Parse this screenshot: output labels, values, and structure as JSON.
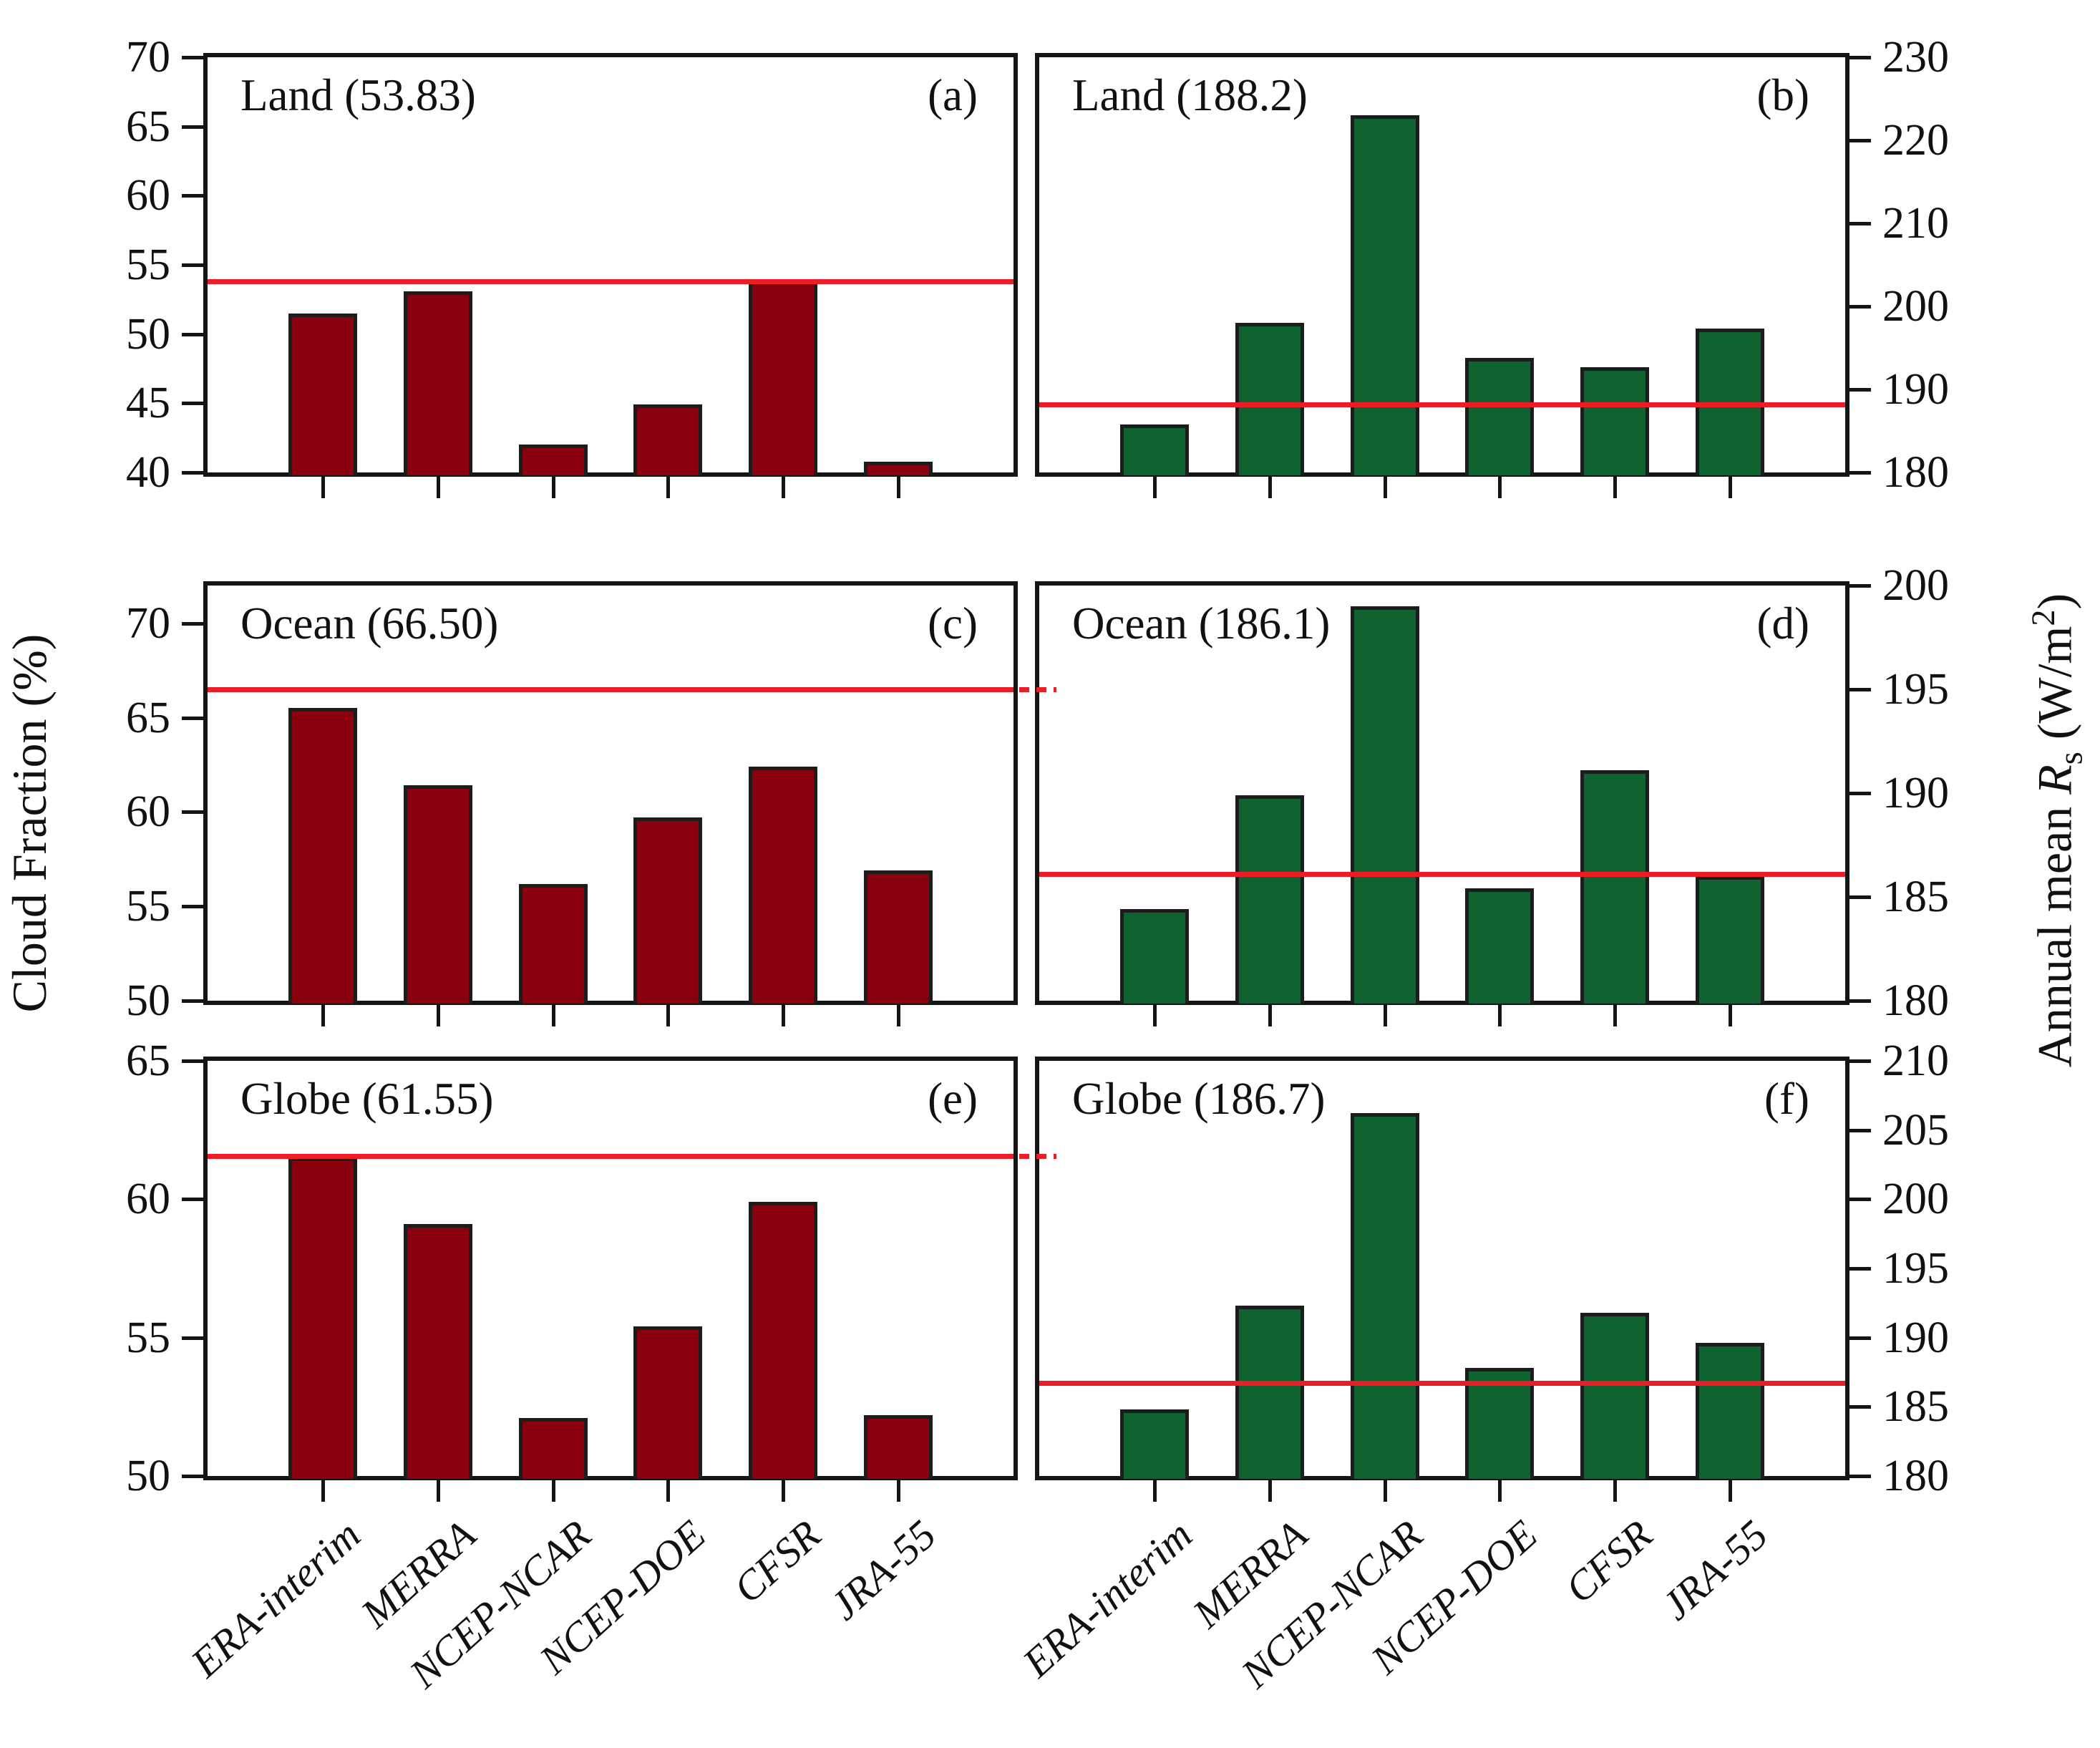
{
  "figure": {
    "left_axis_label": "Cloud Fraction (%)",
    "right_axis_label": {
      "prefix": "Annual mean ",
      "symbol": "R",
      "subscript": "s",
      "mid": " (W/m",
      "superscript": "2",
      "suffix": ")"
    },
    "colors": {
      "cloud_fraction_bar": "#8a010e",
      "radiation_bar": "#0e6330",
      "mean_line": "#ee1c25",
      "frame": "#151515"
    }
  },
  "chart_data": {
    "type": "bar",
    "categories": [
      "ERA-interim",
      "MERRA",
      "NCEP-NCAR",
      "NCEP-DOE",
      "CFSR",
      "JRA-55"
    ],
    "left_column_variable": "Cloud Fraction (%)",
    "right_column_variable": "Annual mean Rs (W/m2)",
    "legend_position": "none",
    "grid": false,
    "panels": [
      {
        "letter": "(a)",
        "title": "Land (53.83)",
        "region": "Land",
        "mean": 53.83,
        "variable": "Cloud Fraction",
        "unit": "%",
        "bar_color": "#8a010e",
        "ymin": 40,
        "ymax": 70,
        "yticks": [
          70,
          65,
          60,
          55,
          50,
          45,
          40
        ],
        "values": [
          51.5,
          53.1,
          42.0,
          44.9,
          53.8,
          40.8
        ],
        "mean_line_overshoot": false
      },
      {
        "letter": "(b)",
        "title": "Land (188.2)",
        "region": "Land",
        "mean": 188.2,
        "variable": "Annual mean Rs",
        "unit": "W/m2",
        "bar_color": "#0e6330",
        "ymin": 180,
        "ymax": 230,
        "yticks": [
          230,
          220,
          210,
          200,
          190,
          180
        ],
        "values": [
          185.8,
          198.0,
          223.0,
          193.8,
          192.7,
          197.3
        ],
        "mean_line_overshoot": false
      },
      {
        "letter": "(c)",
        "title": "Ocean (66.50)",
        "region": "Ocean",
        "mean": 66.5,
        "variable": "Cloud Fraction",
        "unit": "%",
        "bar_color": "#8a010e",
        "ymin": 50,
        "ymax": 72,
        "yticks": [
          70,
          65,
          60,
          55,
          50
        ],
        "values": [
          65.5,
          61.4,
          56.2,
          59.7,
          62.4,
          56.9
        ],
        "mean_line_overshoot": true
      },
      {
        "letter": "(d)",
        "title": "Ocean (186.1)",
        "region": "Ocean",
        "mean": 186.1,
        "variable": "Annual mean Rs",
        "unit": "W/m2",
        "bar_color": "#0e6330",
        "ymin": 180,
        "ymax": 200,
        "yticks": [
          200,
          195,
          190,
          185,
          180
        ],
        "values": [
          184.4,
          189.9,
          199.0,
          185.4,
          191.1,
          186.0
        ],
        "mean_line_overshoot": false
      },
      {
        "letter": "(e)",
        "title": "Globe (61.55)",
        "region": "Globe",
        "mean": 61.55,
        "variable": "Cloud Fraction",
        "unit": "%",
        "bar_color": "#8a010e",
        "ymin": 50,
        "ymax": 65,
        "yticks": [
          65,
          60,
          55,
          50
        ],
        "values": [
          61.5,
          59.1,
          52.1,
          55.4,
          59.9,
          52.2
        ],
        "mean_line_overshoot": true
      },
      {
        "letter": "(f)",
        "title": "Globe (186.7)",
        "region": "Globe",
        "mean": 186.7,
        "variable": "Annual mean Rs",
        "unit": "W/m2",
        "bar_color": "#0e6330",
        "ymin": 180,
        "ymax": 210,
        "yticks": [
          210,
          205,
          200,
          195,
          190,
          185,
          180
        ],
        "values": [
          184.8,
          192.3,
          206.2,
          187.8,
          191.8,
          189.6
        ],
        "mean_line_overshoot": false
      }
    ]
  }
}
